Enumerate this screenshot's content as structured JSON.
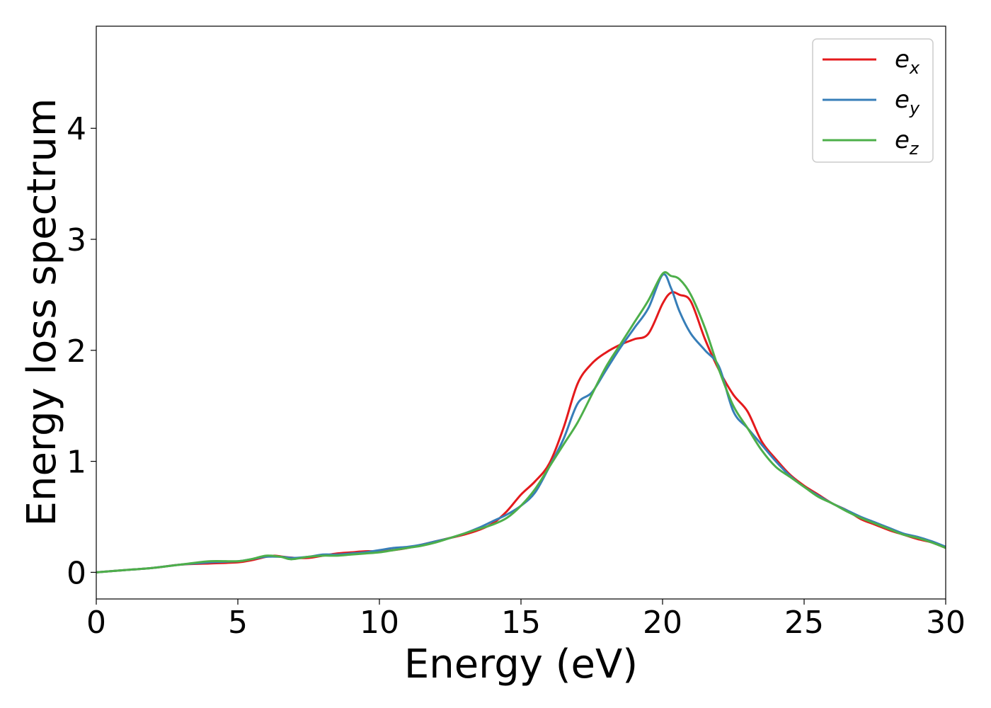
{
  "chart_data": {
    "type": "line",
    "xlabel": "Energy (eV)",
    "ylabel": "Energy loss spectrum",
    "xlim": [
      0,
      30
    ],
    "ylim": [
      -0.24,
      4.92
    ],
    "xticks": [
      0,
      5,
      10,
      15,
      20,
      25,
      30
    ],
    "yticks": [
      0,
      1,
      2,
      3,
      4
    ],
    "grid": false,
    "legend_position": "top-right",
    "series": [
      {
        "name": "e",
        "subscript": "x",
        "color": "#e41a1c",
        "x": [
          0,
          1,
          2,
          3,
          4,
          5,
          5.5,
          6,
          6.3,
          6.6,
          7,
          7.5,
          8,
          8.5,
          9,
          9.5,
          10,
          10.5,
          11,
          11.5,
          12,
          12.5,
          13,
          13.5,
          14,
          14.5,
          15,
          15.5,
          16,
          16.5,
          17,
          17.5,
          18,
          18.5,
          19,
          19.5,
          20,
          20.3,
          20.6,
          21,
          21.5,
          22,
          22.5,
          23,
          23.5,
          24,
          24.5,
          25,
          25.5,
          26,
          26.5,
          27,
          27.5,
          28,
          28.5,
          29,
          29.5,
          30
        ],
        "y": [
          0,
          0.02,
          0.04,
          0.07,
          0.08,
          0.09,
          0.11,
          0.14,
          0.15,
          0.14,
          0.13,
          0.13,
          0.15,
          0.17,
          0.18,
          0.19,
          0.19,
          0.2,
          0.22,
          0.25,
          0.28,
          0.31,
          0.34,
          0.38,
          0.44,
          0.55,
          0.7,
          0.82,
          0.98,
          1.3,
          1.7,
          1.88,
          1.98,
          2.05,
          2.1,
          2.15,
          2.42,
          2.52,
          2.5,
          2.44,
          2.1,
          1.82,
          1.6,
          1.45,
          1.18,
          1.02,
          0.88,
          0.78,
          0.7,
          0.62,
          0.56,
          0.48,
          0.43,
          0.38,
          0.34,
          0.3,
          0.27,
          0.22
        ]
      },
      {
        "name": "e",
        "subscript": "y",
        "color": "#377eb8",
        "x": [
          0,
          1,
          2,
          3,
          4,
          5,
          5.5,
          6,
          6.5,
          7,
          7.5,
          8,
          8.5,
          9,
          9.5,
          10,
          10.5,
          11,
          11.5,
          12,
          12.5,
          13,
          13.5,
          14,
          14.5,
          15,
          15.5,
          16,
          16.5,
          17,
          17.5,
          18,
          18.5,
          19,
          19.5,
          20,
          20.3,
          20.6,
          21,
          21.5,
          22,
          22.5,
          23,
          23.5,
          24,
          24.5,
          25,
          25.5,
          26,
          26.5,
          27,
          27.5,
          28,
          28.5,
          29,
          29.5,
          30
        ],
        "y": [
          0,
          0.02,
          0.04,
          0.07,
          0.09,
          0.1,
          0.12,
          0.14,
          0.14,
          0.13,
          0.14,
          0.16,
          0.16,
          0.17,
          0.18,
          0.2,
          0.22,
          0.23,
          0.25,
          0.28,
          0.31,
          0.35,
          0.4,
          0.46,
          0.52,
          0.6,
          0.72,
          0.95,
          1.2,
          1.52,
          1.62,
          1.82,
          2.02,
          2.2,
          2.38,
          2.68,
          2.56,
          2.35,
          2.15,
          2.0,
          1.85,
          1.45,
          1.3,
          1.15,
          1.0,
          0.87,
          0.77,
          0.69,
          0.62,
          0.56,
          0.5,
          0.45,
          0.4,
          0.35,
          0.32,
          0.28,
          0.23
        ]
      },
      {
        "name": "e",
        "subscript": "z",
        "color": "#4daf4a",
        "x": [
          0,
          1,
          2,
          3,
          4,
          5,
          5.5,
          6,
          6.5,
          6.8,
          7,
          7.5,
          8,
          8.5,
          9,
          9.5,
          10,
          10.5,
          11,
          11.5,
          12,
          12.5,
          13,
          13.5,
          14,
          14.5,
          15,
          15.5,
          16,
          16.5,
          17,
          17.5,
          18,
          18.5,
          19,
          19.5,
          20,
          20.3,
          20.6,
          21,
          21.5,
          22,
          22.5,
          23,
          23.5,
          24,
          24.5,
          25,
          25.5,
          26,
          26.5,
          27,
          27.5,
          28,
          28.5,
          29,
          29.5,
          30
        ],
        "y": [
          0,
          0.02,
          0.04,
          0.07,
          0.1,
          0.1,
          0.12,
          0.15,
          0.14,
          0.12,
          0.12,
          0.14,
          0.15,
          0.15,
          0.16,
          0.17,
          0.18,
          0.2,
          0.22,
          0.24,
          0.27,
          0.31,
          0.35,
          0.39,
          0.43,
          0.49,
          0.6,
          0.75,
          0.95,
          1.15,
          1.35,
          1.6,
          1.85,
          2.05,
          2.25,
          2.45,
          2.69,
          2.67,
          2.64,
          2.5,
          2.2,
          1.82,
          1.5,
          1.3,
          1.1,
          0.95,
          0.86,
          0.77,
          0.68,
          0.62,
          0.55,
          0.49,
          0.44,
          0.39,
          0.34,
          0.31,
          0.27,
          0.22
        ]
      }
    ]
  }
}
